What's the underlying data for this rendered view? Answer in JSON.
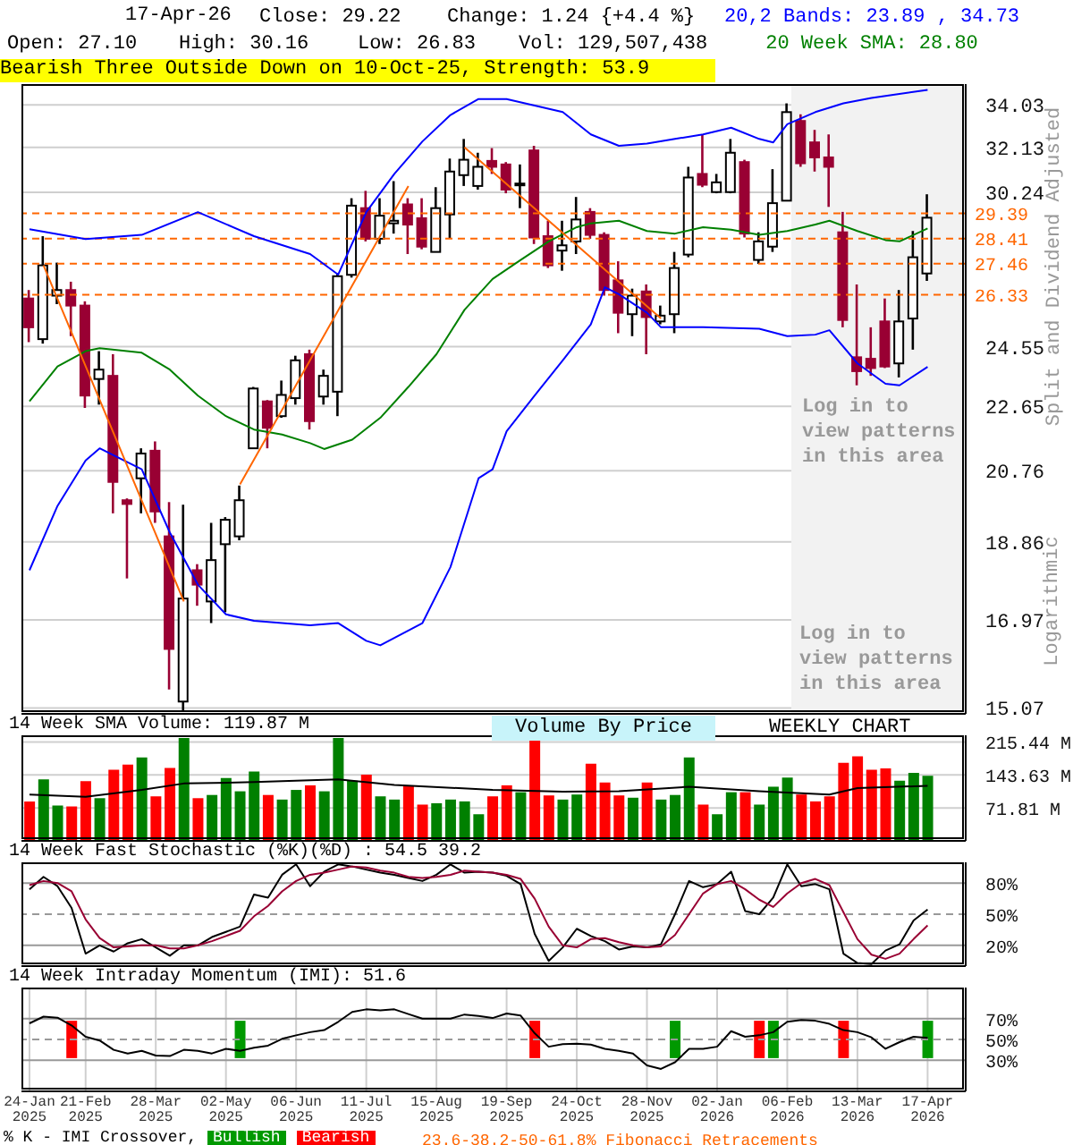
{
  "chart_data": [
    {
      "type": "candlestick",
      "title": "17-Apr-26",
      "subtitle": "Bearish Three Outside Down on 10-Oct-25, Strength: 53.9",
      "ylabel": "Split and Dividend Adjusted",
      "x": [
        "2025-01-24",
        "2025-01-31",
        "2025-02-07",
        "2025-02-14",
        "2025-02-21",
        "2025-02-28",
        "2025-03-07",
        "2025-03-14",
        "2025-03-21",
        "2025-03-28",
        "2025-04-04",
        "2025-04-11",
        "2025-04-18",
        "2025-04-25",
        "2025-05-02",
        "2025-05-09",
        "2025-05-16",
        "2025-05-23",
        "2025-05-30",
        "2025-06-06",
        "2025-06-13",
        "2025-06-20",
        "2025-06-27",
        "2025-07-04",
        "2025-07-11",
        "2025-07-18",
        "2025-07-25",
        "2025-08-01",
        "2025-08-08",
        "2025-08-15",
        "2025-08-22",
        "2025-08-29",
        "2025-09-05",
        "2025-09-12",
        "2025-09-19",
        "2025-09-26",
        "2025-10-03",
        "2025-10-10",
        "2025-10-17",
        "2025-10-24",
        "2025-10-31",
        "2025-11-07",
        "2025-11-14",
        "2025-11-21",
        "2025-11-28",
        "2025-12-05",
        "2025-12-12",
        "2025-12-19",
        "2025-12-26",
        "2026-01-02",
        "2026-01-09",
        "2026-01-16",
        "2026-01-23",
        "2026-01-30",
        "2026-02-06",
        "2026-02-13",
        "2026-02-20",
        "2026-02-27",
        "2026-03-06",
        "2026-03-13",
        "2026-03-20",
        "2026-03-27",
        "2026-04-03",
        "2026-04-10",
        "2026-04-17"
      ],
      "ohlc": [
        [
          26.2,
          26.5,
          24.7,
          25.2
        ],
        [
          24.8,
          28.5,
          24.65,
          27.4
        ],
        [
          26.3,
          27.5,
          26.0,
          26.5
        ],
        [
          26.5,
          26.8,
          24.9,
          25.95
        ],
        [
          25.95,
          26.1,
          22.6,
          22.98
        ],
        [
          23.5,
          24.4,
          22.7,
          23.8
        ],
        [
          23.6,
          24.3,
          19.6,
          20.45
        ],
        [
          19.95,
          20.0,
          17.95,
          19.85
        ],
        [
          20.55,
          21.4,
          19.6,
          21.25
        ],
        [
          21.33,
          21.6,
          19.35,
          19.65
        ],
        [
          19.0,
          19.9,
          15.45,
          16.32
        ],
        [
          15.2,
          19.83,
          15.0,
          17.47
        ],
        [
          18.15,
          18.3,
          17.3,
          17.8
        ],
        [
          17.4,
          19.35,
          16.9,
          18.4
        ],
        [
          18.8,
          19.5,
          17.15,
          19.43
        ],
        [
          19.0,
          20.35,
          18.9,
          19.95
        ],
        [
          21.4,
          23.25,
          21.38,
          23.2
        ],
        [
          22.8,
          22.84,
          21.4,
          22.0
        ],
        [
          22.35,
          23.45,
          22.3,
          23.0
        ],
        [
          22.9,
          24.25,
          22.7,
          24.1
        ],
        [
          24.3,
          24.45,
          21.95,
          22.2
        ],
        [
          22.95,
          23.8,
          22.7,
          23.6
        ],
        [
          23.1,
          27.1,
          22.35,
          27.0
        ],
        [
          27.05,
          30.0,
          26.95,
          29.7
        ],
        [
          29.6,
          30.3,
          28.3,
          28.4
        ],
        [
          28.4,
          30.0,
          28.2,
          29.3
        ],
        [
          29.0,
          30.7,
          28.6,
          29.1
        ],
        [
          29.75,
          30.0,
          27.82,
          28.95
        ],
        [
          29.2,
          30.0,
          28.0,
          28.1
        ],
        [
          27.9,
          30.45,
          27.9,
          29.6
        ],
        [
          29.35,
          31.65,
          28.4,
          31.1
        ],
        [
          30.95,
          32.5,
          30.5,
          31.6
        ],
        [
          30.5,
          31.9,
          30.35,
          31.3
        ],
        [
          31.55,
          32.1,
          31.0,
          31.3
        ],
        [
          31.4,
          31.5,
          30.2,
          30.35
        ],
        [
          30.55,
          31.4,
          29.6,
          30.6
        ],
        [
          32.0,
          32.2,
          28.2,
          28.45
        ],
        [
          28.5,
          29.1,
          27.3,
          27.4
        ],
        [
          27.95,
          29.1,
          27.2,
          28.15
        ],
        [
          28.3,
          30.05,
          27.82,
          29.15
        ],
        [
          29.45,
          29.6,
          28.4,
          28.55
        ],
        [
          28.55,
          28.65,
          26.3,
          26.5
        ],
        [
          26.85,
          27.55,
          25.0,
          25.7
        ],
        [
          25.65,
          26.55,
          24.9,
          26.3
        ],
        [
          26.45,
          26.7,
          24.3,
          25.55
        ],
        [
          25.4,
          25.95,
          25.3,
          25.6
        ],
        [
          25.65,
          27.9,
          25.0,
          27.3
        ],
        [
          27.8,
          31.3,
          27.7,
          30.85
        ],
        [
          31.0,
          32.7,
          30.45,
          30.55
        ],
        [
          30.25,
          31.0,
          30.2,
          30.65
        ],
        [
          30.25,
          32.5,
          30.2,
          31.9
        ],
        [
          31.5,
          31.6,
          28.45,
          28.6
        ],
        [
          27.6,
          28.65,
          27.45,
          28.3
        ],
        [
          28.1,
          31.2,
          27.9,
          29.8
        ],
        [
          29.9,
          34.1,
          29.9,
          33.7
        ],
        [
          33.3,
          33.6,
          31.3,
          31.45
        ],
        [
          32.35,
          32.9,
          31.1,
          31.7
        ],
        [
          31.7,
          32.7,
          29.65,
          31.3
        ],
        [
          28.65,
          29.45,
          25.2,
          25.45
        ],
        [
          24.2,
          26.7,
          23.3,
          23.75
        ],
        [
          24.15,
          25.2,
          23.6,
          23.85
        ],
        [
          25.4,
          26.2,
          23.85,
          23.9
        ],
        [
          24.0,
          26.5,
          23.55,
          25.4
        ],
        [
          25.5,
          28.7,
          24.45,
          27.7
        ],
        [
          27.1,
          30.16,
          26.83,
          29.22
        ]
      ],
      "series": [
        {
          "type": "line",
          "name": "20,2 Bands: 23.89 , 34.73",
          "color": "#0000ff",
          "x": [
            "2025-01-24",
            "2025-02-21",
            "2025-03-21",
            "2025-04-18",
            "2025-05-16",
            "2025-06-13",
            "2025-06-27",
            "2025-07-11",
            "2025-07-25",
            "2025-08-08",
            "2025-08-22",
            "2025-09-05",
            "2025-09-19",
            "2025-10-03",
            "2025-10-17",
            "2025-10-31",
            "2025-11-14",
            "2025-11-28",
            "2025-12-12",
            "2025-12-26",
            "2026-01-09",
            "2026-01-23",
            "2026-01-30",
            "2026-02-06",
            "2026-02-20",
            "2026-03-06",
            "2026-03-20",
            "2026-04-17"
          ],
          "values": [
            28.77,
            28.39,
            28.55,
            29.44,
            28.5,
            27.82,
            27.06,
            29.44,
            31.0,
            32.39,
            33.57,
            34.3,
            34.3,
            34.0,
            33.7,
            32.7,
            32.2,
            32.3,
            32.5,
            32.7,
            33.0,
            32.5,
            32.35,
            33.15,
            33.7,
            34.1,
            34.35,
            34.73
          ]
        },
        {
          "type": "line",
          "color": "#0000ff",
          "x": [
            "2025-01-24",
            "2025-02-07",
            "2025-02-21",
            "2025-02-28",
            "2025-03-21",
            "2025-04-04",
            "2025-04-18",
            "2025-05-02",
            "2025-05-16",
            "2025-06-13",
            "2025-06-27",
            "2025-07-11",
            "2025-07-18",
            "2025-08-08",
            "2025-08-22",
            "2025-09-05",
            "2025-09-12",
            "2025-09-19",
            "2025-10-03",
            "2025-10-17",
            "2025-10-31",
            "2025-11-07",
            "2025-11-14",
            "2025-11-28",
            "2025-12-05",
            "2025-12-26",
            "2026-01-23",
            "2026-02-06",
            "2026-02-20",
            "2026-02-27",
            "2026-03-13",
            "2026-03-27",
            "2026-04-03",
            "2026-04-17"
          ],
          "values": [
            18.15,
            19.8,
            21.05,
            21.4,
            20.8,
            19.1,
            17.8,
            17.1,
            16.95,
            16.85,
            16.9,
            16.5,
            16.4,
            16.9,
            18.23,
            20.55,
            20.8,
            21.9,
            22.98,
            24.1,
            25.3,
            26.6,
            26.35,
            25.7,
            25.2,
            25.2,
            25.15,
            24.9,
            24.95,
            25.1,
            24.0,
            23.35,
            23.3,
            23.89
          ]
        },
        {
          "type": "line",
          "name": "20 Week SMA: 28.80",
          "color": "#008000",
          "x": [
            "2025-01-24",
            "2025-02-07",
            "2025-02-21",
            "2025-02-28",
            "2025-03-21",
            "2025-04-04",
            "2025-04-18",
            "2025-05-02",
            "2025-05-16",
            "2025-05-30",
            "2025-06-13",
            "2025-06-20",
            "2025-07-04",
            "2025-07-18",
            "2025-08-01",
            "2025-08-15",
            "2025-08-29",
            "2025-09-12",
            "2025-09-26",
            "2025-10-10",
            "2025-10-24",
            "2025-10-31",
            "2025-11-14",
            "2025-11-28",
            "2025-12-12",
            "2025-12-26",
            "2026-01-09",
            "2026-01-23",
            "2026-02-06",
            "2026-02-20",
            "2026-02-27",
            "2026-03-13",
            "2026-03-27",
            "2026-04-03",
            "2026-04-17"
          ],
          "values": [
            22.8,
            23.9,
            24.4,
            24.5,
            24.35,
            23.8,
            22.98,
            22.35,
            21.95,
            21.8,
            21.55,
            21.38,
            21.65,
            22.3,
            23.25,
            24.3,
            25.8,
            26.9,
            27.6,
            28.3,
            28.85,
            29.0,
            29.1,
            28.7,
            28.6,
            28.85,
            28.75,
            28.55,
            28.7,
            28.95,
            29.1,
            28.7,
            28.35,
            28.3,
            28.8
          ]
        },
        {
          "type": "line",
          "color": "#ff6600",
          "x": [
            "2025-01-31",
            "2025-04-11",
            "2025-04-25",
            "2025-05-09",
            "2025-08-01",
            "2025-08-15",
            "2025-08-29",
            "2025-12-05"
          ],
          "values": [
            27.4,
            17.4,
            null,
            20.38,
            30.5,
            null,
            32.13,
            25.5
          ]
        }
      ],
      "xlim": [
        "2025-01-20",
        "2026-05-06"
      ],
      "xticks": [
        {
          "value": "2025-01-24",
          "label": null
        },
        {
          "value": "2025-02-21",
          "label": null
        },
        {
          "value": "2025-03-28",
          "label": null
        },
        {
          "value": "2025-05-02",
          "label": null
        },
        {
          "value": "2025-06-06",
          "label": null
        },
        {
          "value": "2025-07-11",
          "label": null
        },
        {
          "value": "2025-08-15",
          "label": null
        },
        {
          "value": "2025-09-19",
          "label": null
        },
        {
          "value": "2025-10-24",
          "label": null
        },
        {
          "value": "2025-11-28",
          "label": null
        },
        {
          "value": "2026-01-02",
          "label": null
        },
        {
          "value": "2026-02-06",
          "label": null
        },
        {
          "value": "2026-03-13",
          "label": null
        },
        {
          "value": "2026-04-17",
          "label": null
        }
      ],
      "ylim": [
        14.95,
        35.0
      ],
      "yticks": [
        34.03,
        32.13,
        30.24,
        24.55,
        22.65,
        20.76,
        18.86,
        16.97,
        15.07
      ],
      "log": true,
      "grid": true,
      "legend": "top right",
      "tick_labels": "y",
      "ref_lines": [
        {
          "axis": "y",
          "value": 29.39,
          "label": "29.39",
          "color": "#ff6600",
          "line_style": "dashed"
        },
        {
          "axis": "y",
          "value": 28.41,
          "label": "28.41",
          "color": "#ff6600",
          "line_style": "dashed"
        },
        {
          "axis": "y",
          "value": 27.46,
          "label": "27.46",
          "color": "#ff6600",
          "line_style": "dashed"
        },
        {
          "axis": "y",
          "value": 26.33,
          "label": "26.33",
          "color": "#ff6600",
          "line_style": "dashed"
        }
      ],
      "bands": [
        {
          "axis": "x",
          "from": "2026-02-08",
          "to": "2026-05-06",
          "label": "Log in to view patterns in this area",
          "color": "#f2f2f2"
        }
      ],
      "annotations": [
        "Close: 29.22",
        "Change: 1.24 {+4.4 %}",
        "Open: 27.10",
        "High: 30.16",
        "Low: 26.83",
        "Vol: 129,507,438",
        "Log in to view patterns in this area",
        "Logarithmic",
        "23.6-38.2-50-61.8% Fibonacci Retracements"
      ]
    },
    {
      "type": "bar",
      "title": "14 Week SMA Volume: 119.87 M",
      "x": [
        "2025-01-24",
        "2025-01-31",
        "2025-02-07",
        "2025-02-14",
        "2025-02-21",
        "2025-02-28",
        "2025-03-07",
        "2025-03-14",
        "2025-03-21",
        "2025-03-28",
        "2025-04-04",
        "2025-04-11",
        "2025-04-18",
        "2025-04-25",
        "2025-05-02",
        "2025-05-09",
        "2025-05-16",
        "2025-05-23",
        "2025-05-30",
        "2025-06-06",
        "2025-06-13",
        "2025-06-20",
        "2025-06-27",
        "2025-07-04",
        "2025-07-11",
        "2025-07-18",
        "2025-07-25",
        "2025-08-01",
        "2025-08-08",
        "2025-08-15",
        "2025-08-22",
        "2025-08-29",
        "2025-09-05",
        "2025-09-12",
        "2025-09-19",
        "2025-09-26",
        "2025-10-03",
        "2025-10-10",
        "2025-10-17",
        "2025-10-24",
        "2025-10-31",
        "2025-11-07",
        "2025-11-14",
        "2025-11-21",
        "2025-11-28",
        "2025-12-05",
        "2025-12-12",
        "2025-12-19",
        "2025-12-26",
        "2026-01-02",
        "2026-01-09",
        "2026-01-16",
        "2026-01-23",
        "2026-01-30",
        "2026-02-06",
        "2026-02-13",
        "2026-02-20",
        "2026-02-27",
        "2026-03-06",
        "2026-03-13",
        "2026-03-20",
        "2026-03-27",
        "2026-04-03",
        "2026-04-10",
        "2026-04-17"
      ],
      "series": [
        {
          "type": "bar",
          "values": [
            86,
            134,
            77,
            75,
            130,
            93,
            155,
            166,
            182,
            97,
            159,
            224,
            93,
            100,
            137,
            108,
            151,
            100,
            90,
            111,
            121,
            108,
            224,
            131,
            144,
            97,
            90,
            120,
            79,
            82,
            90,
            86,
            58,
            97,
            121,
            106,
            224,
            99,
            90,
            101,
            168,
            127,
            99,
            94,
            127,
            90,
            100,
            182,
            79,
            58,
            106,
            106,
            79,
            118,
            138,
            101,
            86,
            97,
            170,
            184,
            155,
            158,
            131,
            148,
            142
          ],
          "colors": [
            "#ff0000",
            "#008000",
            "#008000",
            "#ff0000",
            "#ff0000",
            "#008000",
            "#ff0000",
            "#ff0000",
            "#008000",
            "#ff0000",
            "#ff0000",
            "#008000",
            "#ff0000",
            "#008000",
            "#008000",
            "#008000",
            "#008000",
            "#ff0000",
            "#008000",
            "#008000",
            "#ff0000",
            "#008000",
            "#008000",
            "#008000",
            "#ff0000",
            "#008000",
            "#008000",
            "#ff0000",
            "#ff0000",
            "#008000",
            "#008000",
            "#008000",
            "#008000",
            "#ff0000",
            "#ff0000",
            "#008000",
            "#ff0000",
            "#ff0000",
            "#008000",
            "#008000",
            "#ff0000",
            "#ff0000",
            "#ff0000",
            "#008000",
            "#ff0000",
            "#008000",
            "#008000",
            "#008000",
            "#ff0000",
            "#008000",
            "#008000",
            "#ff0000",
            "#008000",
            "#008000",
            "#008000",
            "#ff0000",
            "#ff0000",
            "#ff0000",
            "#ff0000",
            "#ff0000",
            "#ff0000",
            "#ff0000",
            "#008000",
            "#008000",
            "#008000"
          ]
        },
        {
          "type": "line",
          "color": "#000000",
          "x": [
            "2025-01-24",
            "2025-02-21",
            "2025-03-21",
            "2025-04-11",
            "2025-05-16",
            "2025-06-27",
            "2025-07-25",
            "2025-09-12",
            "2025-10-17",
            "2025-11-14",
            "2025-12-19",
            "2026-01-23",
            "2026-02-27",
            "2026-03-13",
            "2026-04-17"
          ],
          "values": [
            101,
            96,
            111,
            125,
            128,
            134,
            122,
            111,
            107,
            108,
            118,
            108,
            101,
            115,
            119.87
          ]
        }
      ],
      "xlim": [
        "2025-01-20",
        "2026-05-06"
      ],
      "xticks": [
        {
          "value": "2025-01-24",
          "label": null
        },
        {
          "value": "2025-02-21",
          "label": null
        },
        {
          "value": "2025-03-28",
          "label": null
        },
        {
          "value": "2025-05-02",
          "label": null
        },
        {
          "value": "2025-06-06",
          "label": null
        },
        {
          "value": "2025-07-11",
          "label": null
        },
        {
          "value": "2025-08-15",
          "label": null
        },
        {
          "value": "2025-09-19",
          "label": null
        },
        {
          "value": "2025-10-24",
          "label": null
        },
        {
          "value": "2025-11-28",
          "label": null
        },
        {
          "value": "2026-01-02",
          "label": null
        },
        {
          "value": "2026-02-06",
          "label": null
        },
        {
          "value": "2026-03-13",
          "label": null
        },
        {
          "value": "2026-04-17",
          "label": null
        }
      ],
      "ylim": [
        0,
        230
      ],
      "yticks": [
        {
          "value": 71.81,
          "label": "71.81 M"
        },
        {
          "value": 143.63,
          "label": "143.63 M"
        },
        {
          "value": 215.44,
          "label": "215.44 M"
        }
      ],
      "grid": true,
      "tick_labels": "y",
      "annotations": [
        "Volume By Price",
        "WEEKLY CHART"
      ]
    },
    {
      "type": "line",
      "title": "14 Week Fast Stochastic (%K)(%D) : 54.5 39.2",
      "x": [
        "2025-01-24",
        "2025-01-31",
        "2025-02-07",
        "2025-02-14",
        "2025-02-21",
        "2025-02-28",
        "2025-03-07",
        "2025-03-14",
        "2025-03-21",
        "2025-03-28",
        "2025-04-04",
        "2025-04-11",
        "2025-04-18",
        "2025-04-25",
        "2025-05-02",
        "2025-05-09",
        "2025-05-16",
        "2025-05-23",
        "2025-05-30",
        "2025-06-06",
        "2025-06-13",
        "2025-06-20",
        "2025-06-27",
        "2025-07-04",
        "2025-07-11",
        "2025-07-18",
        "2025-07-25",
        "2025-08-01",
        "2025-08-08",
        "2025-08-15",
        "2025-08-22",
        "2025-08-29",
        "2025-09-05",
        "2025-09-12",
        "2025-09-19",
        "2025-09-26",
        "2025-10-03",
        "2025-10-10",
        "2025-10-17",
        "2025-10-24",
        "2025-10-31",
        "2025-11-07",
        "2025-11-14",
        "2025-11-21",
        "2025-11-28",
        "2025-12-05",
        "2025-12-12",
        "2025-12-19",
        "2025-12-26",
        "2026-01-02",
        "2026-01-09",
        "2026-01-16",
        "2026-01-23",
        "2026-01-30",
        "2026-02-06",
        "2026-02-13",
        "2026-02-20",
        "2026-02-27",
        "2026-03-06",
        "2026-03-13",
        "2026-03-20",
        "2026-03-27",
        "2026-04-03",
        "2026-04-10",
        "2026-04-17"
      ],
      "series": [
        {
          "color": "#000000",
          "values": [
            74,
            86,
            77,
            56,
            12,
            20,
            14,
            22,
            26,
            18,
            10,
            20,
            20,
            28,
            33,
            38,
            69,
            66,
            88,
            98,
            77,
            91,
            98,
            96,
            93,
            90,
            88,
            85,
            82,
            88,
            98,
            90,
            91,
            90,
            87,
            79,
            31,
            5,
            18,
            36,
            29,
            24,
            16,
            19,
            18,
            21,
            50,
            82,
            76,
            79,
            91,
            53,
            50,
            66,
            98,
            77,
            79,
            74,
            12,
            3,
            2,
            15,
            21,
            44,
            54.5
          ]
        },
        {
          "color": "#990033",
          "values": [
            78,
            82,
            80,
            72,
            45,
            27,
            18,
            19,
            20,
            20,
            17,
            17,
            20,
            24,
            29,
            34,
            48,
            58,
            72,
            82,
            88,
            90,
            93,
            96,
            95,
            92,
            90,
            86,
            85,
            86,
            88,
            92,
            91,
            90,
            88,
            84,
            65,
            38,
            20,
            18,
            26,
            27,
            23,
            20,
            18,
            19,
            30,
            50,
            70,
            79,
            82,
            74,
            64,
            57,
            70,
            80,
            84,
            78,
            52,
            26,
            11,
            7,
            12,
            26,
            39.2
          ]
        }
      ],
      "xlim": [
        "2025-01-20",
        "2026-05-06"
      ],
      "xticks": [
        {
          "value": "2025-01-24",
          "label": null
        },
        {
          "value": "2025-02-21",
          "label": null
        },
        {
          "value": "2025-03-28",
          "label": null
        },
        {
          "value": "2025-05-02",
          "label": null
        },
        {
          "value": "2025-06-06",
          "label": null
        },
        {
          "value": "2025-07-11",
          "label": null
        },
        {
          "value": "2025-08-15",
          "label": null
        },
        {
          "value": "2025-09-19",
          "label": null
        },
        {
          "value": "2025-10-24",
          "label": null
        },
        {
          "value": "2025-11-28",
          "label": null
        },
        {
          "value": "2026-01-02",
          "label": null
        },
        {
          "value": "2026-02-06",
          "label": null
        },
        {
          "value": "2026-03-13",
          "label": null
        },
        {
          "value": "2026-04-17",
          "label": null
        }
      ],
      "ylim": [
        0,
        100
      ],
      "yticks": [
        {
          "value": 20,
          "label": "20%"
        },
        {
          "value": 50,
          "label": "50%"
        },
        {
          "value": 80,
          "label": "80%"
        }
      ],
      "grid": "x",
      "tick_labels": "y",
      "ref_lines": [
        {
          "axis": "y",
          "value": 80,
          "color": "#999999"
        },
        {
          "axis": "y",
          "value": 50,
          "color": "#999999",
          "line_style": "dashed"
        },
        {
          "axis": "y",
          "value": 20,
          "color": "#999999"
        }
      ]
    },
    {
      "type": "line",
      "title": "14 Week Intraday Momentum (IMI): 51.6",
      "legend_title": "% K - IMI Crossover,",
      "x": [
        "2025-01-24",
        "2025-01-31",
        "2025-02-07",
        "2025-02-14",
        "2025-02-21",
        "2025-02-28",
        "2025-03-07",
        "2025-03-14",
        "2025-03-21",
        "2025-03-28",
        "2025-04-04",
        "2025-04-11",
        "2025-04-18",
        "2025-04-25",
        "2025-05-02",
        "2025-05-09",
        "2025-05-16",
        "2025-05-23",
        "2025-05-30",
        "2025-06-06",
        "2025-06-13",
        "2025-06-20",
        "2025-06-27",
        "2025-07-04",
        "2025-07-11",
        "2025-07-18",
        "2025-07-25",
        "2025-08-01",
        "2025-08-08",
        "2025-08-15",
        "2025-08-22",
        "2025-08-29",
        "2025-09-05",
        "2025-09-12",
        "2025-09-19",
        "2025-09-26",
        "2025-10-03",
        "2025-10-10",
        "2025-10-17",
        "2025-10-24",
        "2025-10-31",
        "2025-11-07",
        "2025-11-14",
        "2025-11-21",
        "2025-11-28",
        "2025-12-05",
        "2025-12-12",
        "2025-12-19",
        "2025-12-26",
        "2026-01-02",
        "2026-01-09",
        "2026-01-16",
        "2026-01-23",
        "2026-01-30",
        "2026-02-06",
        "2026-02-13",
        "2026-02-20",
        "2026-02-27",
        "2026-03-06",
        "2026-03-13",
        "2026-03-20",
        "2026-03-27",
        "2026-04-03",
        "2026-04-10",
        "2026-04-17"
      ],
      "series": [
        {
          "color": "#000000",
          "values": [
            65.5,
            72,
            71,
            63.5,
            52.6,
            49,
            40,
            36.5,
            39,
            34.5,
            34,
            40,
            39,
            36.5,
            41,
            39,
            42,
            44,
            50.6,
            54,
            57,
            59,
            67,
            76.5,
            79,
            78,
            79,
            74.5,
            70,
            70,
            70,
            74,
            72.6,
            70.6,
            75,
            73,
            56,
            43,
            45.5,
            46,
            45,
            41,
            39,
            36.5,
            25,
            21.6,
            28,
            41,
            41,
            43,
            58,
            52.6,
            54,
            57,
            67,
            68.7,
            68,
            65,
            59,
            57,
            52,
            41,
            47.4,
            52.6,
            51.6
          ]
        },
        {
          "type": "bar",
          "name": "Bullish",
          "color": "#009900",
          "x": [
            "2025-05-09",
            "2025-12-12",
            "2026-01-30",
            "2026-04-17"
          ],
          "base": [
            32,
            32,
            32,
            32
          ],
          "values": [
            36,
            36,
            36,
            36
          ]
        },
        {
          "type": "bar",
          "name": "Bearish",
          "color": "#ff0000",
          "x": [
            "2025-02-14",
            "2025-10-03",
            "2026-01-23",
            "2026-03-06"
          ],
          "base": [
            32,
            32,
            32,
            32
          ],
          "values": [
            36,
            36,
            36,
            36
          ]
        }
      ],
      "xlim": [
        "2025-01-20",
        "2026-05-06"
      ],
      "xticks": [
        {
          "value": "2025-01-24",
          "label": "24-Jan\n2025"
        },
        {
          "value": "2025-02-21",
          "label": "21-Feb\n2025"
        },
        {
          "value": "2025-03-28",
          "label": "28-Mar\n2025"
        },
        {
          "value": "2025-05-02",
          "label": "02-May\n2025"
        },
        {
          "value": "2025-06-06",
          "label": "06-Jun\n2025"
        },
        {
          "value": "2025-07-11",
          "label": "11-Jul\n2025"
        },
        {
          "value": "2025-08-15",
          "label": "15-Aug\n2025"
        },
        {
          "value": "2025-09-19",
          "label": "19-Sep\n2025"
        },
        {
          "value": "2025-10-24",
          "label": "24-Oct\n2025"
        },
        {
          "value": "2025-11-28",
          "label": "28-Nov\n2025"
        },
        {
          "value": "2026-01-02",
          "label": "02-Jan\n2026"
        },
        {
          "value": "2026-02-06",
          "label": "06-Feb\n2026"
        },
        {
          "value": "2026-03-13",
          "label": "13-Mar\n2026"
        },
        {
          "value": "2026-04-17",
          "label": "17-Apr\n2026"
        }
      ],
      "ylim": [
        0,
        100
      ],
      "yticks": [
        {
          "value": 30,
          "label": "30%"
        },
        {
          "value": 50,
          "label": "50%"
        },
        {
          "value": 70,
          "label": "70%"
        }
      ],
      "grid": "x",
      "legend": "bottom",
      "ref_lines": [
        {
          "axis": "y",
          "value": 70,
          "color": "#999999"
        },
        {
          "axis": "y",
          "value": 50,
          "color": "#999999",
          "line_style": "dashed"
        },
        {
          "axis": "y",
          "value": 30,
          "color": "#999999"
        }
      ]
    }
  ]
}
